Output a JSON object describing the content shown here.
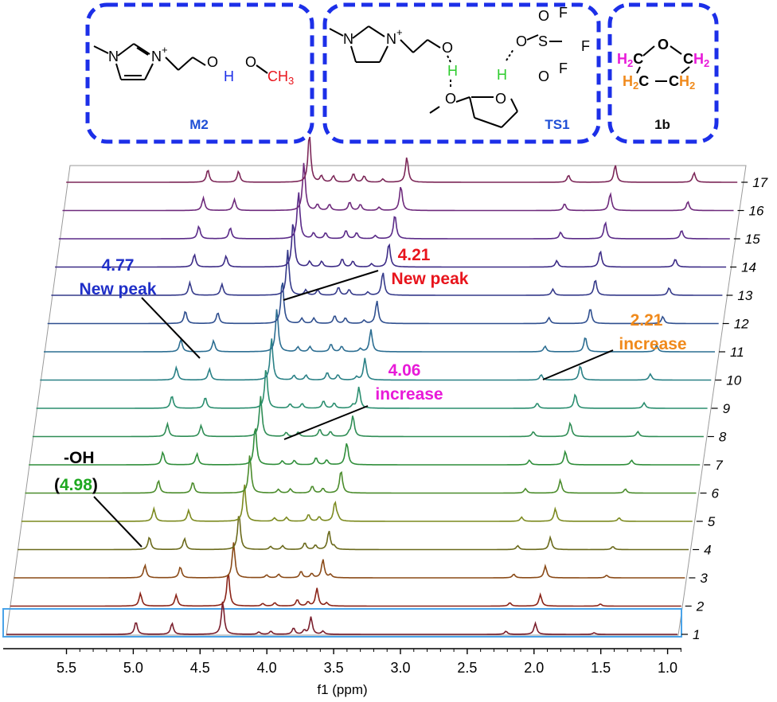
{
  "structures": [
    {
      "label": "M2",
      "label_color": "#1f4fd6"
    },
    {
      "label": "TS1",
      "label_color": "#1f4fd6"
    },
    {
      "label": "1b",
      "label_color": "#111111"
    }
  ],
  "atoms": {
    "N": "N",
    "Nplus": "N",
    "plus": "+",
    "O": "O",
    "H": "H",
    "C": "C",
    "CH": "C",
    "H3": "H",
    "S": "S",
    "F": "F",
    "H2": "H",
    "sub2": "2",
    "sub3": "3"
  },
  "annotations": [
    {
      "value": "4.21",
      "text": "New peak",
      "color": "#e8141c"
    },
    {
      "value": "4.77",
      "text": "New peak",
      "color": "#1f2fc8"
    },
    {
      "value": "2.21",
      "text": "increase",
      "color": "#f08a1c"
    },
    {
      "value": "4.06",
      "text": "increase",
      "color": "#e81ad8"
    },
    {
      "value": "-OH",
      "value2": "4.98",
      "color": "#1ea820"
    }
  ],
  "chart_data": {
    "type": "line",
    "xlabel": "f1 (ppm)",
    "xlim": [
      5.95,
      0.92
    ],
    "xticks": [
      "5.5",
      "5.0",
      "4.5",
      "4.0",
      "3.5",
      "3.0",
      "2.5",
      "2.0",
      "1.5",
      "1.0"
    ],
    "spectrum_labels": [
      "1",
      "2",
      "3",
      "4",
      "5",
      "6",
      "7",
      "8",
      "9",
      "10",
      "11",
      "12",
      "13",
      "14",
      "15",
      "16",
      "17"
    ],
    "series_colors": [
      "#7a1f2d",
      "#8b2418",
      "#8a4a17",
      "#6b6a1c",
      "#7c8a1f",
      "#4b8c2c",
      "#2f8e3a",
      "#2f8d55",
      "#2a8e6f",
      "#2a8186",
      "#2c6e92",
      "#2f4f8f",
      "#353a8a",
      "#3c2b86",
      "#5a2a88",
      "#6e2a7c",
      "#7c2758"
    ],
    "peaks_ppm": [
      4.98,
      4.71,
      4.33,
      4.06,
      3.97,
      3.8,
      3.67,
      2.21,
      1.99
    ],
    "trends": {
      "4.77": "new peak",
      "4.21": "new peak",
      "4.06": "increase",
      "2.21": "increase"
    }
  }
}
